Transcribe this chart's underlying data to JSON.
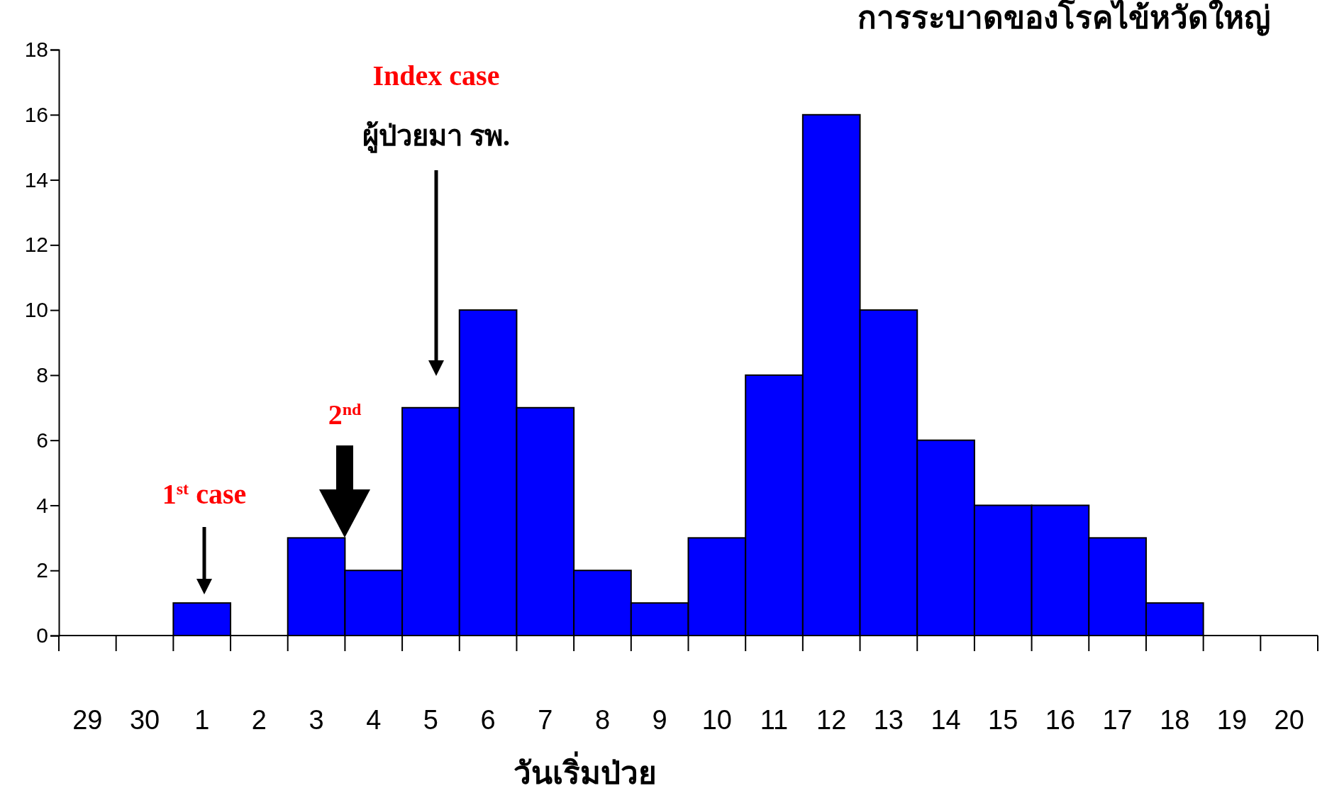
{
  "chart_data": {
    "type": "bar",
    "title": "การระบาดของโรคไข้หวัดใหญ่",
    "xlabel": "วันเริ่มป่วย",
    "categories": [
      "29",
      "30",
      "1",
      "2",
      "3",
      "4",
      "5",
      "6",
      "7",
      "8",
      "9",
      "10",
      "11",
      "12",
      "13",
      "14",
      "15",
      "16",
      "17",
      "18",
      "19",
      "20"
    ],
    "values": [
      0,
      0,
      1,
      0,
      3,
      2,
      7,
      10,
      7,
      2,
      1,
      3,
      8,
      16,
      10,
      6,
      4,
      4,
      3,
      1,
      0,
      0
    ],
    "color": "#0000ff",
    "ylim": [
      0,
      18
    ],
    "yticks": [
      0,
      2,
      4,
      6,
      8,
      10,
      12,
      14,
      16,
      18
    ],
    "grid": false,
    "annotations": [
      "Index case",
      "ผู้ป่วยมา รพ.",
      "1$^{st}$ case",
      "2$^{nd}$"
    ]
  }
}
